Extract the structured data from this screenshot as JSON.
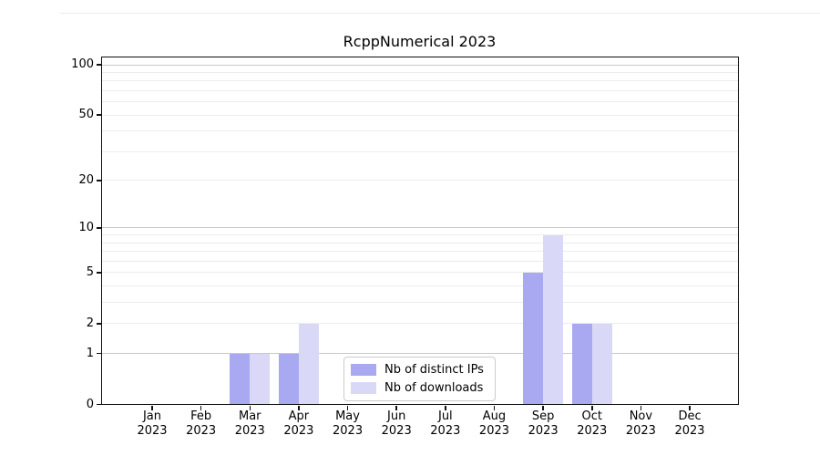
{
  "figure": {
    "title": "RcppNumerical 2023",
    "background": "#ffffff"
  },
  "chart_data": {
    "type": "bar",
    "title": "RcppNumerical 2023",
    "x_categories": [
      {
        "month": "Jan",
        "year": "2023"
      },
      {
        "month": "Feb",
        "year": "2023"
      },
      {
        "month": "Mar",
        "year": "2023"
      },
      {
        "month": "Apr",
        "year": "2023"
      },
      {
        "month": "May",
        "year": "2023"
      },
      {
        "month": "Jun",
        "year": "2023"
      },
      {
        "month": "Jul",
        "year": "2023"
      },
      {
        "month": "Aug",
        "year": "2023"
      },
      {
        "month": "Sep",
        "year": "2023"
      },
      {
        "month": "Oct",
        "year": "2023"
      },
      {
        "month": "Nov",
        "year": "2023"
      },
      {
        "month": "Dec",
        "year": "2023"
      }
    ],
    "series": [
      {
        "name": "Nb of distinct IPs",
        "color": "#a9a9f1",
        "values": [
          0,
          0,
          1,
          1,
          0,
          0,
          0,
          0,
          5,
          2,
          0,
          0
        ]
      },
      {
        "name": "Nb of downloads",
        "color": "#d9d9f7",
        "values": [
          0,
          0,
          1,
          2,
          0,
          0,
          0,
          0,
          9,
          2,
          0,
          0
        ]
      }
    ],
    "y_axis": {
      "scale": "log1p",
      "tick_labels": [
        0,
        1,
        2,
        5,
        10,
        20,
        50,
        100
      ],
      "top_value": 112
    },
    "grid": {
      "major_lines_at": [
        1,
        10,
        100
      ],
      "minor_lines_at": [
        2,
        3,
        4,
        5,
        6,
        7,
        8,
        9,
        20,
        30,
        40,
        50,
        60,
        70,
        80,
        90
      ],
      "major_color": "#c8c8c8",
      "minor_color": "#ececec"
    },
    "legend": {
      "position": "lower center inside plot",
      "entries": [
        "Nb of distinct IPs",
        "Nb of downloads"
      ]
    }
  }
}
